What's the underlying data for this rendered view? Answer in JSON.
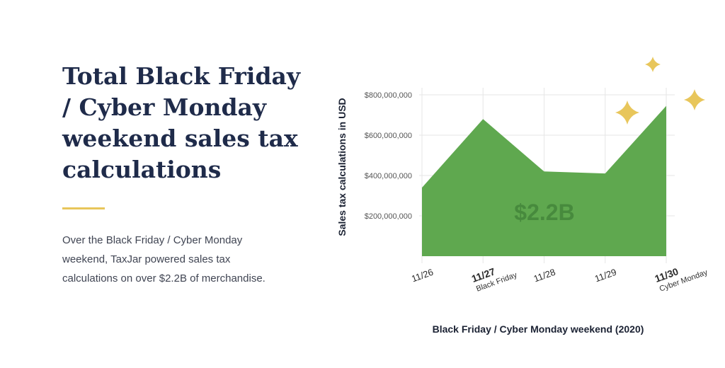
{
  "headline": "Total Black Friday / Cyber Monday weekend sales tax calculations",
  "body": "Over the Black Friday / Cyber Monday weekend, TaxJar powered sales tax calculations on over $2.2B of merchandise.",
  "colors": {
    "accent": "#e8c65b",
    "area": "#5fa84f",
    "headline": "#1f2b4a",
    "annotation": "#478a3d"
  },
  "chart_data": {
    "type": "area",
    "ylabel": "Sales tax calculations in USD",
    "xlabel": "Black Friday / Cyber Monday weekend (2020)",
    "ylim": [
      0,
      800000000
    ],
    "yticks": [
      200000000,
      400000000,
      600000000,
      800000000
    ],
    "ytick_labels": [
      "$200,000,000",
      "$400,000,000",
      "$600,000,000",
      "$800,000,000"
    ],
    "x": [
      "11/26",
      "11/27",
      "11/28",
      "11/29",
      "11/30"
    ],
    "sublabels": [
      "",
      "Black Friday",
      "",
      "",
      "Cyber Monday"
    ],
    "bold": [
      false,
      true,
      false,
      false,
      true
    ],
    "values": [
      340000000,
      680000000,
      420000000,
      410000000,
      745000000
    ],
    "annotation": "$2.2B",
    "grid": true
  }
}
